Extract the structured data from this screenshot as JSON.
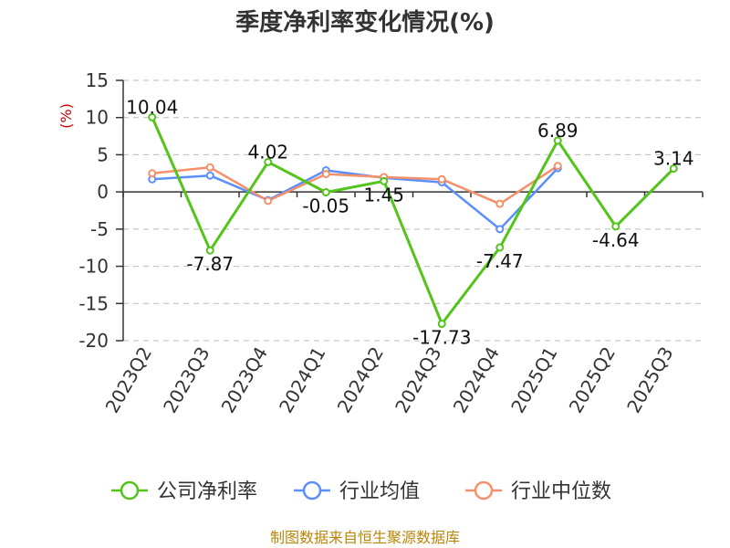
{
  "chart_data": {
    "type": "line",
    "title": "季度净利率变化情况(%)",
    "ylabel": "(%)",
    "xlabel": "",
    "categories": [
      "2023Q2",
      "2023Q3",
      "2023Q4",
      "2024Q1",
      "2024Q2",
      "2024Q3",
      "2024Q4",
      "2025Q1",
      "2025Q2",
      "2025Q3"
    ],
    "ylim": [
      -20,
      15
    ],
    "yticks": [
      15,
      10,
      5,
      0,
      -5,
      -10,
      -15,
      -20
    ],
    "grid": true,
    "legend_position": "bottom",
    "series": [
      {
        "name": "公司净利率",
        "color": "#52c41a",
        "values": [
          10.04,
          -7.87,
          4.02,
          -0.05,
          1.45,
          -17.73,
          -7.47,
          6.89,
          -4.64,
          3.14
        ],
        "labels": [
          "10.04",
          "-7.87",
          "4.02",
          "-0.05",
          "1.45",
          "-17.73",
          "-7.47",
          "6.89",
          "-4.64",
          "3.14"
        ]
      },
      {
        "name": "行业均值",
        "color": "#5b8ff9",
        "values": [
          1.7,
          2.2,
          -1.1,
          2.9,
          1.9,
          1.3,
          -5.0,
          3.2,
          null,
          null
        ]
      },
      {
        "name": "行业中位数",
        "color": "#f6906b",
        "values": [
          2.5,
          3.3,
          -1.2,
          2.4,
          2.0,
          1.7,
          -1.6,
          3.5,
          null,
          null
        ]
      }
    ]
  },
  "source": "制图数据来自恒生聚源数据库"
}
